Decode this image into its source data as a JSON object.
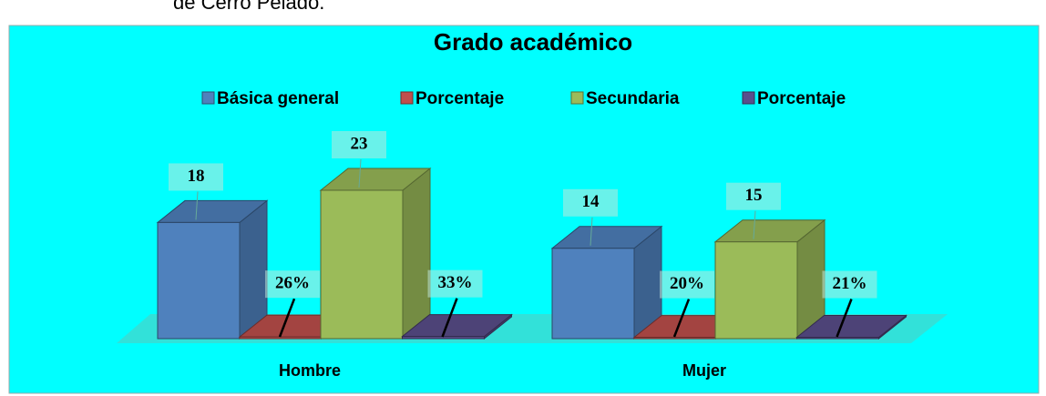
{
  "caption": "de Cerro Pelado.",
  "chart_data": {
    "type": "bar3d",
    "title": "Grado académico",
    "categories": [
      "Hombre",
      "Mujer"
    ],
    "series": [
      {
        "name": "Básica general",
        "color": "#4f81bd",
        "values": [
          18,
          14
        ]
      },
      {
        "name": "Porcentaje",
        "color": "#c0504d",
        "values": [
          0.26,
          0.2
        ],
        "value_labels": [
          "26%",
          "20%"
        ]
      },
      {
        "name": "Secundaria",
        "color": "#9bbb59",
        "values": [
          23,
          15
        ]
      },
      {
        "name": "Porcentaje",
        "color": "#5a4f8c",
        "values": [
          0.33,
          0.21
        ],
        "value_labels": [
          "33%",
          "21%"
        ]
      }
    ],
    "legend": "top"
  }
}
